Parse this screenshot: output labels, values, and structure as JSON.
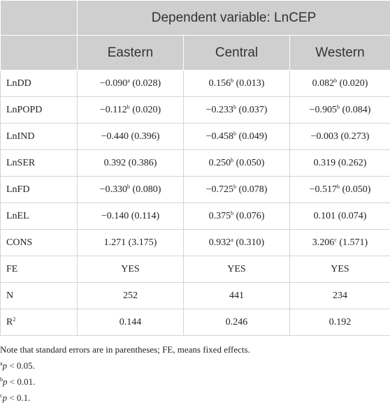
{
  "table": {
    "header": {
      "group": "Dependent variable: LnCEP",
      "columns": [
        "Eastern",
        "Central",
        "Western"
      ]
    },
    "rows": [
      {
        "label": "LnDD",
        "cells": [
          {
            "coef": "−0.090",
            "sup": "a",
            "se": "(0.028)"
          },
          {
            "coef": "0.156",
            "sup": "b",
            "se": "(0.013)"
          },
          {
            "coef": "0.082",
            "sup": "b",
            "se": "(0.020)"
          }
        ]
      },
      {
        "label": "LnPOPD",
        "cells": [
          {
            "coef": "−0.112",
            "sup": "b",
            "se": "(0.020)"
          },
          {
            "coef": "−0.233",
            "sup": "b",
            "se": "(0.037)"
          },
          {
            "coef": "−0.905",
            "sup": "b",
            "se": "(0.084)"
          }
        ]
      },
      {
        "label": "LnIND",
        "cells": [
          {
            "coef": "−0.440",
            "se": "(0.396)"
          },
          {
            "coef": "−0.458",
            "sup": "b",
            "se": "(0.049)"
          },
          {
            "coef": "−0.003",
            "se": "(0.273)"
          }
        ]
      },
      {
        "label": "LnSER",
        "cells": [
          {
            "coef": "0.392",
            "se": "(0.386)"
          },
          {
            "coef": "0.250",
            "sup": "b",
            "se": "(0.050)"
          },
          {
            "coef": "0.319",
            "se": "(0.262)"
          }
        ]
      },
      {
        "label": "LnFD",
        "cells": [
          {
            "coef": "−0.330",
            "sup": "b",
            "se": "(0.080)"
          },
          {
            "coef": "−0.725",
            "sup": "b",
            "se": "(0.078)"
          },
          {
            "coef": "−0.517",
            "sup": "b",
            "se": "(0.050)"
          }
        ]
      },
      {
        "label": "LnEL",
        "cells": [
          {
            "coef": "−0.140",
            "se": "(0.114)"
          },
          {
            "coef": "0.375",
            "sup": "b",
            "se": "(0.076)"
          },
          {
            "coef": "0.101",
            "se": "(0.074)"
          }
        ]
      },
      {
        "label": "CONS",
        "cells": [
          {
            "coef": "1.271",
            "se": "(3.175)"
          },
          {
            "coef": "0.932",
            "sup": "a",
            "se": "(0.310)"
          },
          {
            "coef": "3.206",
            "sup": "c",
            "se": "(1.571)"
          }
        ]
      },
      {
        "label": "FE",
        "cells": [
          "YES",
          "YES",
          "YES"
        ]
      },
      {
        "label": "N",
        "cells": [
          "252",
          "441",
          "234"
        ]
      },
      {
        "label": {
          "base": "R",
          "sup": "2"
        },
        "cells": [
          "0.144",
          "0.246",
          "0.192"
        ]
      }
    ]
  },
  "notes": [
    {
      "text": "Note that standard errors are in parentheses; FE, means fixed effects."
    },
    {
      "sup": "a",
      "var": "p",
      "text": " < 0.05."
    },
    {
      "sup": "b",
      "var": "p",
      "text": " < 0.01."
    },
    {
      "sup": "c",
      "var": "p",
      "text": " < 0.1."
    }
  ]
}
